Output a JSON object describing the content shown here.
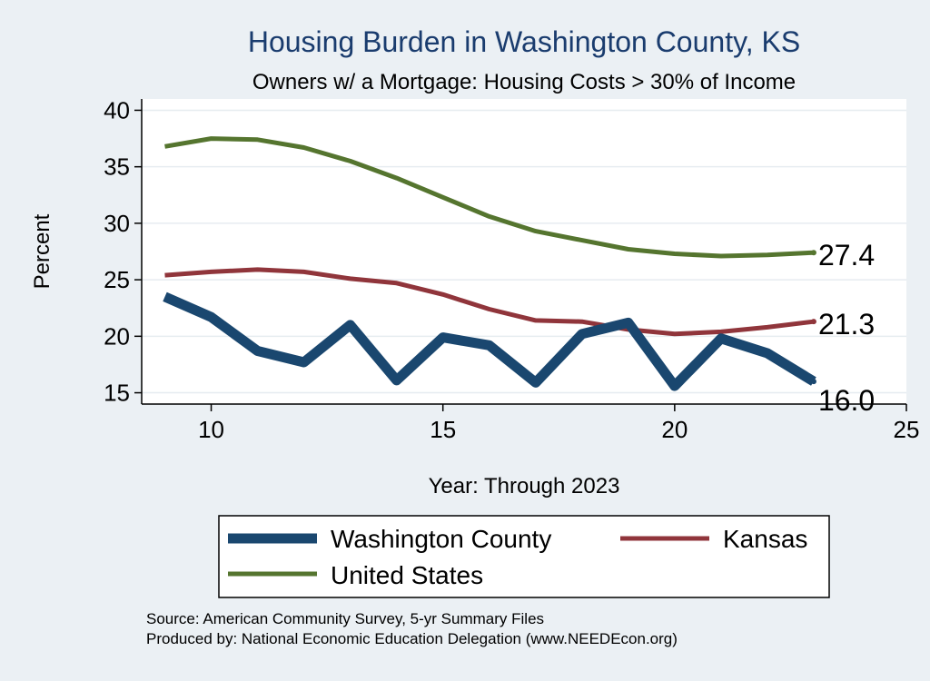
{
  "chart_data": {
    "type": "line",
    "title": "Housing Burden in Washington County, KS",
    "subtitle": "Owners w/ a Mortgage: Housing Costs > 30% of Income",
    "xlabel": "Year: Through 2023",
    "ylabel": "Percent",
    "xlim": [
      8.5,
      25
    ],
    "ylim": [
      14,
      41
    ],
    "xticks": [
      10,
      15,
      20,
      25
    ],
    "yticks": [
      15,
      20,
      25,
      30,
      35,
      40
    ],
    "grid": true,
    "legend_position": "bottom",
    "series": [
      {
        "name": "Washington County",
        "color": "#1a476f",
        "x": [
          9,
          10,
          11,
          12,
          13,
          14,
          15,
          16,
          17,
          18,
          19,
          20,
          21,
          22,
          23
        ],
        "values": [
          23.5,
          21.7,
          18.7,
          17.7,
          21.0,
          16.1,
          19.9,
          19.2,
          15.9,
          20.2,
          21.2,
          15.6,
          19.8,
          18.5,
          16.0
        ],
        "end_label": "16.0"
      },
      {
        "name": "Kansas",
        "color": "#90353b",
        "x": [
          9,
          10,
          11,
          12,
          13,
          14,
          15,
          16,
          17,
          18,
          19,
          20,
          21,
          22,
          23
        ],
        "values": [
          25.4,
          25.7,
          25.9,
          25.7,
          25.1,
          24.7,
          23.7,
          22.4,
          21.4,
          21.3,
          20.6,
          20.2,
          20.4,
          20.8,
          21.3
        ],
        "end_label": "21.3"
      },
      {
        "name": "United States",
        "color": "#55752f",
        "x": [
          9,
          10,
          11,
          12,
          13,
          14,
          15,
          16,
          17,
          18,
          19,
          20,
          21,
          22,
          23
        ],
        "values": [
          36.8,
          37.5,
          37.4,
          36.7,
          35.5,
          34.0,
          32.3,
          30.6,
          29.3,
          28.5,
          27.7,
          27.3,
          27.1,
          27.2,
          27.4
        ],
        "end_label": "27.4"
      }
    ]
  },
  "footer": {
    "source": "Source: American Community Survey, 5-yr Summary Files",
    "produced": "Produced by: National Economic Education Delegation (www.NEEDEcon.org)"
  }
}
